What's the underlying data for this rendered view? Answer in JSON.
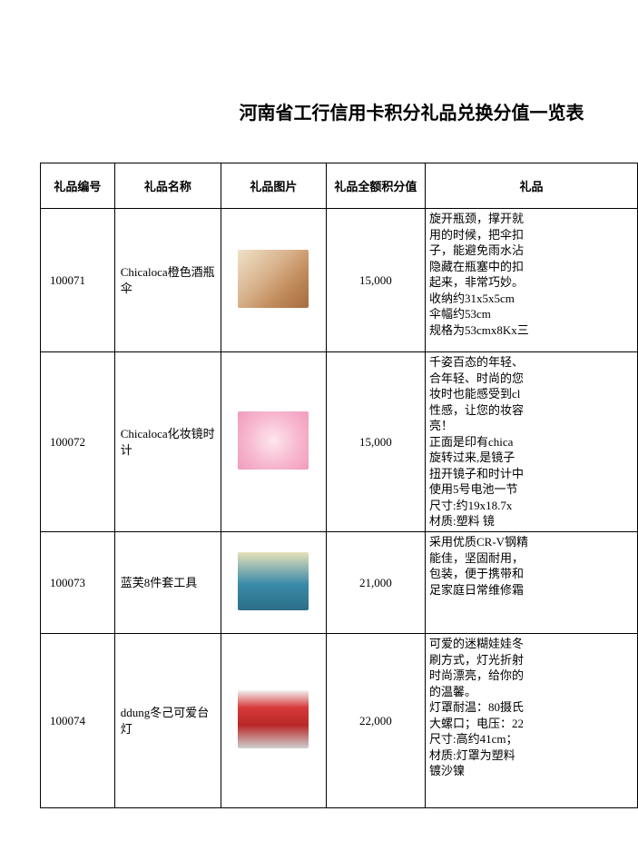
{
  "title": "河南省工行信用卡积分礼品兑换分值一览表",
  "columns": {
    "id": "礼品编号",
    "name": "礼品名称",
    "image": "礼品图片",
    "points": "礼品全额积分值",
    "desc": "礼品"
  },
  "rows": [
    {
      "id": "100071",
      "name": "Chicaloca橙色酒瓶伞",
      "points": "15,000",
      "thumb_bg": "linear-gradient(135deg,#f0e2c8 0%,#d9b48f 40%,#c08a5a 70%,#a86b3e 100%)",
      "desc": "旋开瓶颈，撑开就\n用的时候，把伞扣\n子，能避免雨水沾\n隐藏在瓶塞中的扣\n起来，非常巧妙。\n收纳约31x5x5cm\n伞幅约53cm\n规格为53cmx8Kx三"
    },
    {
      "id": "100072",
      "name": "Chicaloca化妆镜时计",
      "points": "15,000",
      "thumb_bg": "radial-gradient(circle at 50% 50%, #fde6ee 0%, #f7b8cf 55%, #f19bbd 100%)",
      "desc": "千姿百态的年轻、\n合年轻、时尚的您\n妆时也能感受到cl\n性感，让您的妆容\n亮！\n正面是印有chica\n旋转过来,是镜子\n扭开镜子和时计中\n使用5号电池一节\n尺寸:约19x18.7x\n材质:塑料  镜"
    },
    {
      "id": "100073",
      "name": "蓝芙8件套工具",
      "points": "21,000",
      "thumb_bg": "linear-gradient(180deg,#e6e0b8 0%,#3a8aa8 55%,#2c6e88 100%)",
      "desc": "采用优质CR-V钢精\n能佳，坚固耐用，\n包装，便于携带和\n足家庭日常维修霜"
    },
    {
      "id": "100074",
      "name": "ddung冬己可爱台灯",
      "points": "22,000",
      "thumb_bg": "linear-gradient(180deg,#f2f2f2 0%,#d83a3a 30%,#b82828 60%,#cfcfcf 100%)",
      "desc": "可爱的迷糊娃娃冬\n刷方式，灯光折射\n时尚漂亮，给你的\n的温馨。\n灯罩耐温：80摄氏\n大螺口；电压：22\n尺寸:高约41cm；\n材质:灯罩为塑料\n镀沙镍"
    }
  ]
}
